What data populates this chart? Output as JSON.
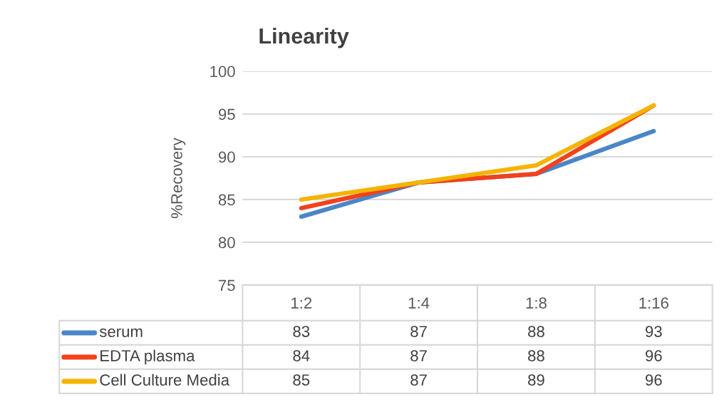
{
  "chart_data": {
    "type": "line",
    "title": "Linearity",
    "ylabel": "%Recovery",
    "categories": [
      "1:2",
      "1:4",
      "1:8",
      "1:16"
    ],
    "series": [
      {
        "name": "serum",
        "color": "#4a86c8",
        "values": [
          83,
          87,
          88,
          93
        ]
      },
      {
        "name": "EDTA plasma",
        "color": "#f2411c",
        "values": [
          84,
          87,
          88,
          96
        ]
      },
      {
        "name": "Cell Culture Media",
        "color": "#f4b400",
        "values": [
          85,
          87,
          89,
          96
        ]
      }
    ],
    "ylim": [
      75,
      100
    ],
    "yticks": [
      75,
      80,
      85,
      90,
      95,
      100
    ],
    "grid": "y",
    "legend": "bottom left",
    "data_labels": true,
    "marker": "none",
    "line_style": "solid"
  }
}
